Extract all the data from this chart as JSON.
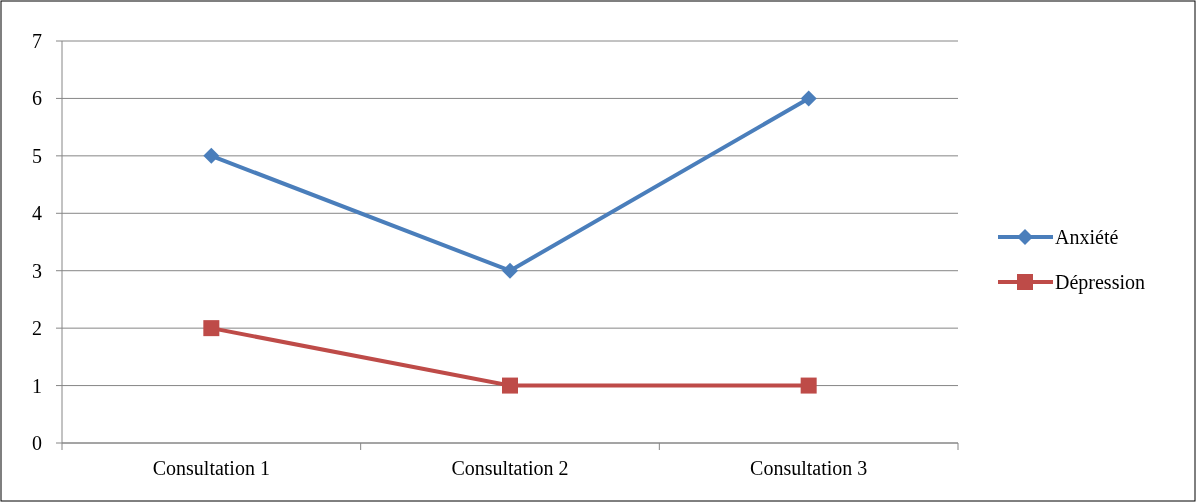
{
  "chart_data": {
    "type": "line",
    "categories": [
      "Consultation 1",
      "Consultation 2",
      "Consultation 3"
    ],
    "series": [
      {
        "name": "Anxiété",
        "color": "#4a7ebb",
        "values": [
          5,
          3,
          6
        ],
        "marker": "diamond"
      },
      {
        "name": "Dépression",
        "color": "#be4b48",
        "values": [
          2,
          1,
          1
        ],
        "marker": "square"
      }
    ],
    "ylim": [
      0,
      7
    ],
    "yticks": [
      0,
      1,
      2,
      3,
      4,
      5,
      6,
      7
    ],
    "grid": "y",
    "legend": "right"
  }
}
